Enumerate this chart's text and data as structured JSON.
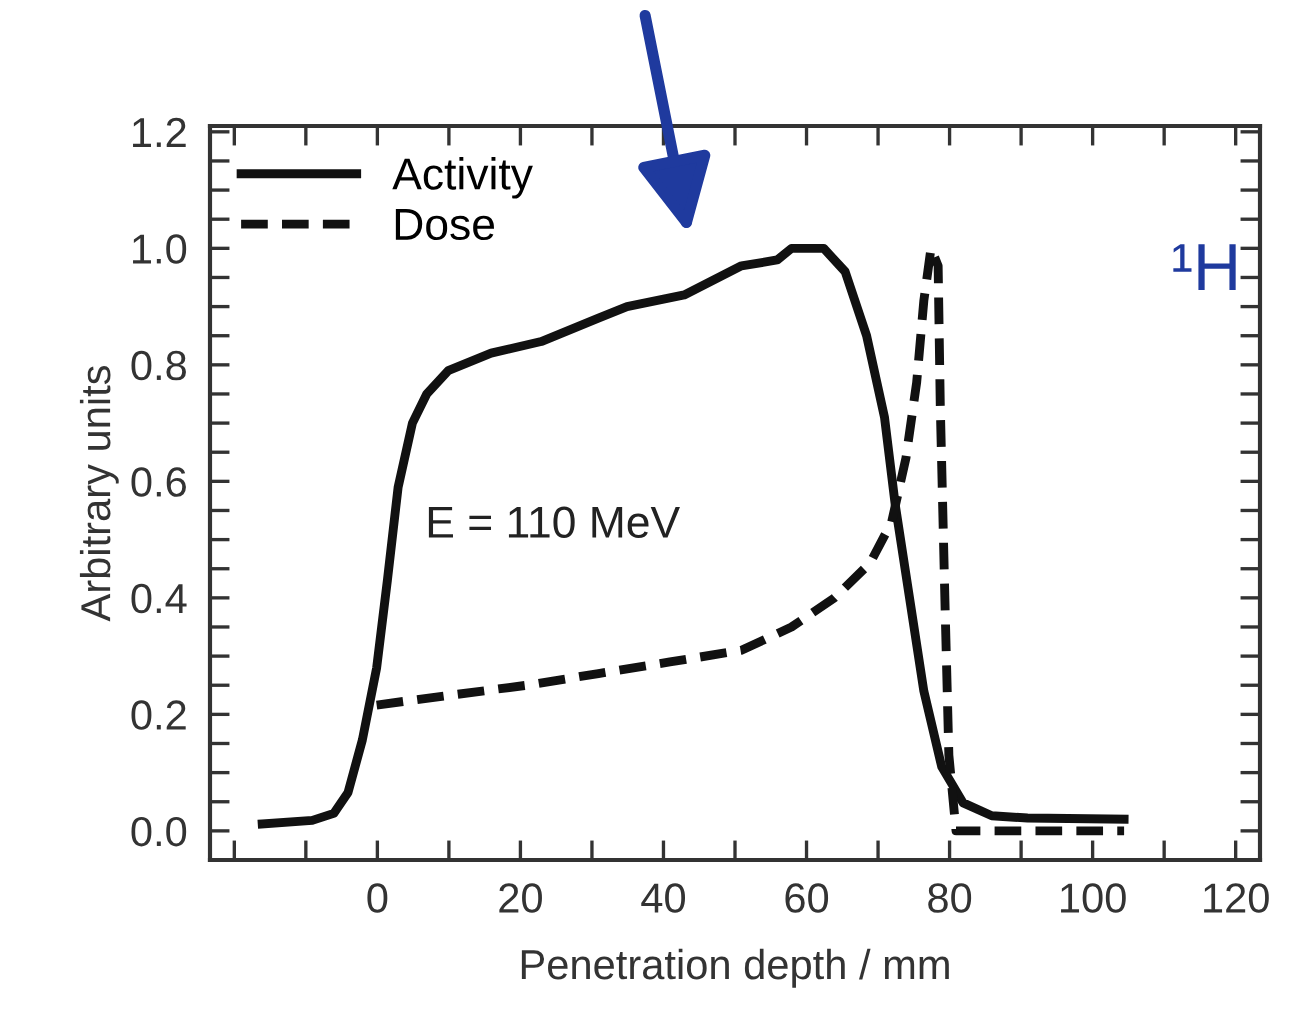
{
  "chart_data": {
    "type": "line",
    "xlabel": "Penetration depth / mm",
    "ylabel": "Arbitrary units",
    "xlim": [
      -23.4,
      123.4
    ],
    "ylim": [
      -0.05,
      1.21
    ],
    "xticks": [
      {
        "value": -20,
        "label": null
      },
      {
        "value": -10,
        "label": null
      },
      0,
      {
        "value": 10,
        "label": null
      },
      20,
      {
        "value": 30,
        "label": null
      },
      40,
      {
        "value": 50,
        "label": null
      },
      60,
      {
        "value": 70,
        "label": null
      },
      80,
      {
        "value": 90,
        "label": null
      },
      100,
      {
        "value": 110,
        "label": null
      },
      120
    ],
    "yticks": [
      {
        "value": 0,
        "label": "0.0"
      },
      {
        "value": 0.05,
        "label": null
      },
      {
        "value": 0.1,
        "label": null
      },
      {
        "value": 0.15,
        "label": null
      },
      {
        "value": 0.2,
        "label": "0.2"
      },
      {
        "value": 0.25,
        "label": null
      },
      {
        "value": 0.3,
        "label": null
      },
      {
        "value": 0.35,
        "label": null
      },
      {
        "value": 0.4,
        "label": "0.4"
      },
      {
        "value": 0.45,
        "label": null
      },
      {
        "value": 0.5,
        "label": null
      },
      {
        "value": 0.55,
        "label": null
      },
      {
        "value": 0.6,
        "label": "0.6"
      },
      {
        "value": 0.65,
        "label": null
      },
      {
        "value": 0.7,
        "label": null
      },
      {
        "value": 0.75,
        "label": null
      },
      {
        "value": 0.8,
        "label": "0.8"
      },
      {
        "value": 0.85,
        "label": null
      },
      {
        "value": 0.9,
        "label": null
      },
      {
        "value": 0.95,
        "label": null
      },
      {
        "value": 1.0,
        "label": "1.0"
      },
      {
        "value": 1.05,
        "label": null
      },
      {
        "value": 1.1,
        "label": null
      },
      {
        "value": 1.15,
        "label": null
      },
      {
        "value": 1.2,
        "label": "1.2"
      }
    ],
    "grid": false,
    "legend": "top left",
    "series": [
      {
        "name": "Activity",
        "color": "#111111",
        "line_style": "solid",
        "x": [
          -16.1,
          -9.1,
          -6.1,
          -4.1,
          -2.1,
          -0.1,
          1.4,
          2.9,
          4.9,
          6.9,
          9.9,
          15.9,
          22.9,
          30.9,
          34.9,
          42.9,
          50.9,
          55.9,
          57.9,
          62.4,
          65.4,
          68.4,
          70.9,
          72.4,
          74.4,
          76.4,
          78.9,
          81.9,
          85.9,
          90.9,
          104.4
        ],
        "values": [
          0.012,
          0.018,
          0.03,
          0.066,
          0.156,
          0.28,
          0.43,
          0.59,
          0.7,
          0.75,
          0.79,
          0.82,
          0.84,
          0.88,
          0.9,
          0.92,
          0.97,
          0.98,
          1.0,
          1.0,
          0.96,
          0.85,
          0.71,
          0.56,
          0.4,
          0.24,
          0.11,
          0.048,
          0.026,
          0.022,
          0.02
        ]
      },
      {
        "name": "Dose",
        "color": "#111111",
        "line_style": "dashed",
        "x": [
          -0.1,
          10.9,
          20.9,
          30.9,
          40.9,
          50.9,
          57.9,
          63.9,
          68.9,
          71.9,
          73.9,
          75.4,
          76.4,
          77.4,
          78.4,
          78.7,
          79.4,
          79.9,
          80.9,
          85.9,
          104.4
        ],
        "values": [
          0.216,
          0.234,
          0.25,
          0.27,
          0.29,
          0.31,
          0.35,
          0.4,
          0.46,
          0.53,
          0.64,
          0.77,
          0.91,
          1.0,
          0.97,
          0.73,
          0.37,
          0.13,
          0.0,
          0.0,
          0.0
        ]
      }
    ],
    "annotations": [
      "E = 110 MeV",
      "¹H"
    ]
  }
}
